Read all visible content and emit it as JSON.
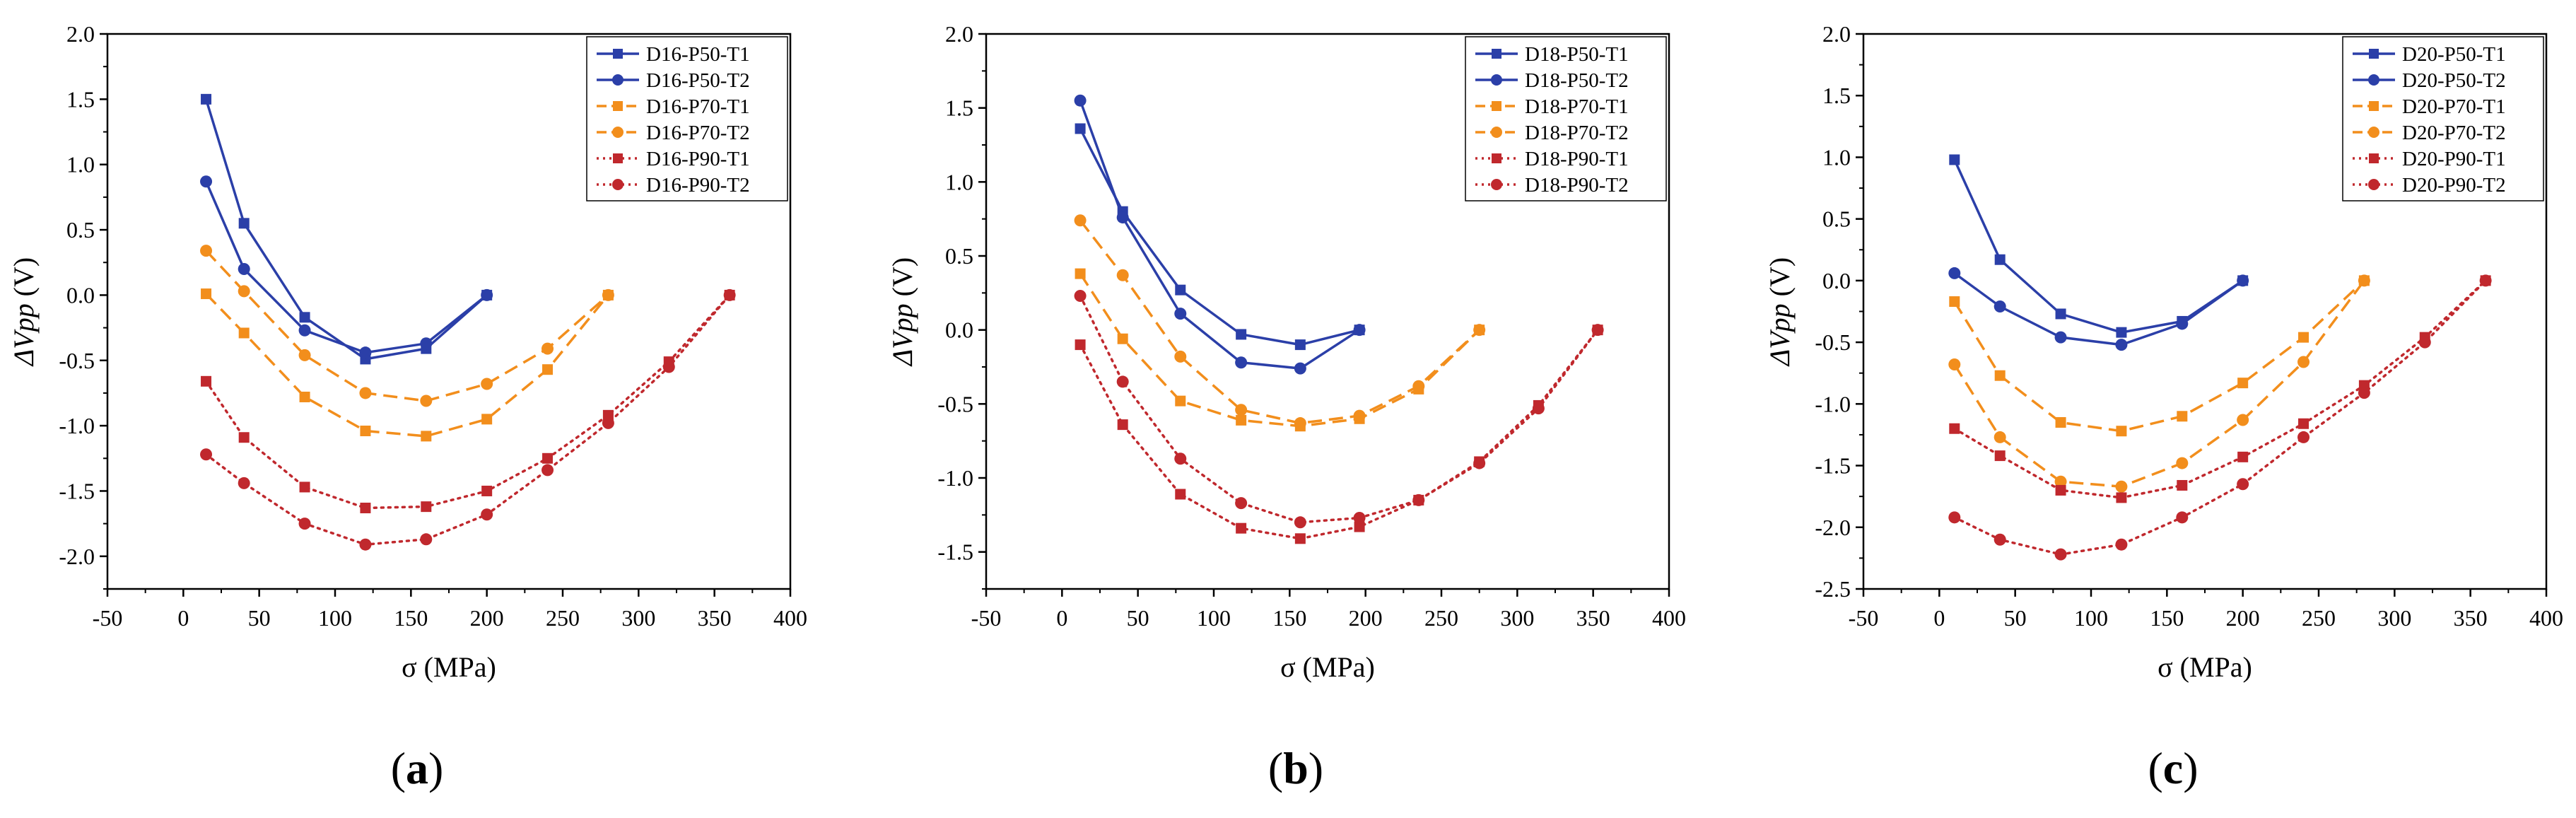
{
  "figure": {
    "colors": {
      "P50": "#2B3FA8",
      "P70": "#F28E1C",
      "P90": "#C0282D"
    }
  },
  "chart_data": [
    {
      "type": "line",
      "panel": "a",
      "panel_label_open": "(",
      "panel_label_letter": "a",
      "panel_label_close": ")",
      "xlabel": "σ (MPa)",
      "ylabel": "ΔVpp (V)",
      "ylabel_main": "ΔVpp",
      "ylabel_unit": " (V)",
      "xlim": [
        -50,
        400
      ],
      "ylim": [
        -2.25,
        2.0
      ],
      "xticks": [
        -50,
        0,
        50,
        100,
        150,
        200,
        250,
        300,
        350,
        400
      ],
      "xtick_labels": [
        "-50",
        "0",
        "50",
        "100",
        "150",
        "200",
        "250",
        "300",
        "350",
        "400"
      ],
      "yticks": [
        2.0,
        1.5,
        1.0,
        0.5,
        0.0,
        -0.5,
        -1.0,
        -1.5,
        -2.0
      ],
      "ytick_labels": [
        "2.0",
        "1.5",
        "1.0",
        "0.5",
        "0.0",
        "-0.5",
        "-1.0",
        "-1.5",
        "-2.0"
      ],
      "legend_position": "top-right",
      "series": [
        {
          "name": "D16-P50-T1",
          "group": "P50",
          "marker": "square",
          "dash": "solid",
          "x": [
            15,
            40,
            80,
            120,
            160,
            200
          ],
          "y": [
            1.5,
            0.55,
            -0.17,
            -0.49,
            -0.41,
            0.0
          ]
        },
        {
          "name": "D16-P50-T2",
          "group": "P50",
          "marker": "circle",
          "dash": "solid",
          "x": [
            15,
            40,
            80,
            120,
            160,
            200
          ],
          "y": [
            0.87,
            0.2,
            -0.27,
            -0.44,
            -0.37,
            0.0
          ]
        },
        {
          "name": "D16-P70-T1",
          "group": "P70",
          "marker": "square",
          "dash": "dashed",
          "x": [
            15,
            40,
            80,
            120,
            160,
            200,
            240,
            280
          ],
          "y": [
            0.01,
            -0.29,
            -0.78,
            -1.04,
            -1.08,
            -0.95,
            -0.57,
            0.0
          ]
        },
        {
          "name": "D16-P70-T2",
          "group": "P70",
          "marker": "circle",
          "dash": "dashed",
          "x": [
            15,
            40,
            80,
            120,
            160,
            200,
            240,
            280
          ],
          "y": [
            0.34,
            0.03,
            -0.46,
            -0.75,
            -0.81,
            -0.68,
            -0.41,
            0.0
          ]
        },
        {
          "name": "D16-P90-T1",
          "group": "P90",
          "marker": "square",
          "dash": "dotted",
          "x": [
            15,
            40,
            80,
            120,
            160,
            200,
            240,
            280,
            320,
            360
          ],
          "y": [
            -0.66,
            -1.09,
            -1.47,
            -1.63,
            -1.62,
            -1.5,
            -1.25,
            -0.92,
            -0.51,
            0.0
          ]
        },
        {
          "name": "D16-P90-T2",
          "group": "P90",
          "marker": "circle",
          "dash": "dotted",
          "x": [
            15,
            40,
            80,
            120,
            160,
            200,
            240,
            280,
            320,
            360
          ],
          "y": [
            -1.22,
            -1.44,
            -1.75,
            -1.91,
            -1.87,
            -1.68,
            -1.34,
            -0.98,
            -0.55,
            0.0
          ]
        }
      ]
    },
    {
      "type": "line",
      "panel": "b",
      "panel_label_open": "(",
      "panel_label_letter": "b",
      "panel_label_close": ")",
      "xlabel": "σ (MPa)",
      "ylabel": "ΔVpp (V)",
      "ylabel_main": "ΔVpp",
      "ylabel_unit": " (V)",
      "xlim": [
        -50,
        400
      ],
      "ylim": [
        -1.75,
        2.0
      ],
      "xticks": [
        -50,
        0,
        50,
        100,
        150,
        200,
        250,
        300,
        350,
        400
      ],
      "xtick_labels": [
        "-50",
        "0",
        "50",
        "100",
        "150",
        "200",
        "250",
        "300",
        "350",
        "400"
      ],
      "yticks": [
        2.0,
        1.5,
        1.0,
        0.5,
        0.0,
        -0.5,
        -1.0,
        -1.5
      ],
      "ytick_labels": [
        "2.0",
        "1.5",
        "1.0",
        "0.5",
        "0.0",
        "-0.5",
        "-1.0",
        "-1.5"
      ],
      "legend_position": "top-right",
      "series": [
        {
          "name": "D18-P50-T1",
          "group": "P50",
          "marker": "square",
          "dash": "solid",
          "x": [
            12,
            40,
            78,
            118,
            157,
            196
          ],
          "y": [
            1.36,
            0.8,
            0.27,
            -0.03,
            -0.1,
            0.0
          ]
        },
        {
          "name": "D18-P50-T2",
          "group": "P50",
          "marker": "circle",
          "dash": "solid",
          "x": [
            12,
            40,
            78,
            118,
            157,
            196
          ],
          "y": [
            1.55,
            0.76,
            0.11,
            -0.22,
            -0.26,
            0.0
          ]
        },
        {
          "name": "D18-P70-T1",
          "group": "P70",
          "marker": "square",
          "dash": "dashed",
          "x": [
            12,
            40,
            78,
            118,
            157,
            196,
            235,
            275
          ],
          "y": [
            0.38,
            -0.06,
            -0.48,
            -0.61,
            -0.65,
            -0.6,
            -0.4,
            0.0
          ]
        },
        {
          "name": "D18-P70-T2",
          "group": "P70",
          "marker": "circle",
          "dash": "dashed",
          "x": [
            12,
            40,
            78,
            118,
            157,
            196,
            235,
            275
          ],
          "y": [
            0.74,
            0.37,
            -0.18,
            -0.54,
            -0.63,
            -0.58,
            -0.38,
            0.0
          ]
        },
        {
          "name": "D18-P90-T1",
          "group": "P90",
          "marker": "square",
          "dash": "dotted",
          "x": [
            12,
            40,
            78,
            118,
            157,
            196,
            235,
            275,
            314,
            353
          ],
          "y": [
            -0.1,
            -0.64,
            -1.11,
            -1.34,
            -1.41,
            -1.33,
            -1.15,
            -0.89,
            -0.51,
            0.0
          ]
        },
        {
          "name": "D18-P90-T2",
          "group": "P90",
          "marker": "circle",
          "dash": "dotted",
          "x": [
            12,
            40,
            78,
            118,
            157,
            196,
            235,
            275,
            314,
            353
          ],
          "y": [
            0.23,
            -0.35,
            -0.87,
            -1.17,
            -1.3,
            -1.27,
            -1.15,
            -0.9,
            -0.53,
            0.0
          ]
        }
      ]
    },
    {
      "type": "line",
      "panel": "c",
      "panel_label_open": "(",
      "panel_label_letter": "c",
      "panel_label_close": ")",
      "xlabel": "σ (MPa)",
      "ylabel": "ΔVpp (V)",
      "ylabel_main": "ΔVpp",
      "ylabel_unit": " (V)",
      "xlim": [
        -50,
        400
      ],
      "ylim": [
        -2.5,
        2.0
      ],
      "xticks": [
        -50,
        0,
        50,
        100,
        150,
        200,
        250,
        300,
        350,
        400
      ],
      "xtick_labels": [
        "-50",
        "0",
        "50",
        "100",
        "150",
        "200",
        "250",
        "300",
        "350",
        "400"
      ],
      "yticks": [
        2.0,
        1.5,
        1.0,
        0.5,
        0.0,
        -0.5,
        -1.0,
        -1.5,
        -2.0,
        -2.5
      ],
      "ytick_labels": [
        "2.0",
        "1.5",
        "1.0",
        "0.5",
        "0.0",
        "-0.5",
        "-1.0",
        "-1.5",
        "-2.0",
        "-2.5"
      ],
      "legend_position": "top-right",
      "series": [
        {
          "name": "D20-P50-T1",
          "group": "P50",
          "marker": "square",
          "dash": "solid",
          "x": [
            10,
            40,
            80,
            120,
            160,
            200
          ],
          "y": [
            0.98,
            0.17,
            -0.27,
            -0.42,
            -0.33,
            0.0
          ]
        },
        {
          "name": "D20-P50-T2",
          "group": "P50",
          "marker": "circle",
          "dash": "solid",
          "x": [
            10,
            40,
            80,
            120,
            160,
            200
          ],
          "y": [
            0.06,
            -0.21,
            -0.46,
            -0.52,
            -0.35,
            0.0
          ]
        },
        {
          "name": "D20-P70-T1",
          "group": "P70",
          "marker": "square",
          "dash": "dashed",
          "x": [
            10,
            40,
            80,
            120,
            160,
            200,
            240,
            280
          ],
          "y": [
            -0.17,
            -0.77,
            -1.15,
            -1.22,
            -1.1,
            -0.83,
            -0.46,
            0.0
          ]
        },
        {
          "name": "D20-P70-T2",
          "group": "P70",
          "marker": "circle",
          "dash": "dashed",
          "x": [
            10,
            40,
            80,
            120,
            160,
            200,
            240,
            280
          ],
          "y": [
            -0.68,
            -1.27,
            -1.63,
            -1.67,
            -1.48,
            -1.13,
            -0.66,
            0.0
          ]
        },
        {
          "name": "D20-P90-T1",
          "group": "P90",
          "marker": "square",
          "dash": "dotted",
          "x": [
            10,
            40,
            80,
            120,
            160,
            200,
            240,
            280,
            320,
            360
          ],
          "y": [
            -1.2,
            -1.42,
            -1.7,
            -1.76,
            -1.66,
            -1.43,
            -1.16,
            -0.85,
            -0.46,
            0.0
          ]
        },
        {
          "name": "D20-P90-T2",
          "group": "P90",
          "marker": "circle",
          "dash": "dotted",
          "x": [
            10,
            40,
            80,
            120,
            160,
            200,
            240,
            280,
            320,
            360
          ],
          "y": [
            -1.92,
            -2.1,
            -2.22,
            -2.14,
            -1.92,
            -1.65,
            -1.27,
            -0.91,
            -0.5,
            0.0
          ]
        }
      ]
    }
  ]
}
